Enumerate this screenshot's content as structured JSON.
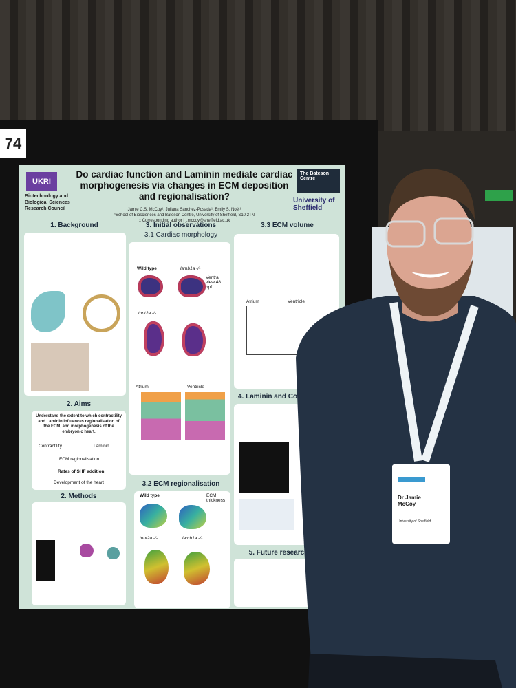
{
  "sign": "74",
  "poster": {
    "title": "Do cardiac function and Laminin mediate cardiac morphogenesis via changes in ECM deposition and regionalisation?",
    "authors": "Jamie C.S. McCoy¹, Juliana Sánchez-Posada¹, Emily S. Noël¹",
    "affiliation": "¹School of Biosciences and Bateson Centre, University of Sheffield, S10 2TN",
    "contact": "‡ Corresponding author | j.mccoy@sheffield.ac.uk",
    "funder_logo": "UKRI",
    "funder": "Biotechnology and Biological Sciences Research Council",
    "centre": "The Bateson Centre",
    "university": "University of Sheffield",
    "sections": {
      "background": "1. Background",
      "aims": "2. Aims",
      "methods": "2. Methods",
      "initial": "3. Initial observations",
      "morphology": "3.1 Cardiac morphology",
      "regionalisation": "3.2 ECM regionalisation",
      "volume": "3.3 ECM volume",
      "laminin": "4. Laminin and Con",
      "future": "5. Future research"
    },
    "aims_text": "Understand the extent to which contractility and Laminin influences regionalisation of the ECM, and morphogenesis of the embryonic heart.",
    "diagram": {
      "contractility": "Contractility",
      "laminin": "Laminin",
      "ecm": "ECM regionalisation",
      "shf": "Rates of SHF addition",
      "development": "Development of the heart"
    },
    "panel_labels": {
      "wild_type": "Wild type",
      "lamb1a": "lamb1a -/-",
      "tnnt2a": "tnnt2a -/-",
      "view": "Ventral view 48 hpf",
      "atrium": "Atrium",
      "ventricle": "Ventricle",
      "thickness": "ECM thickness"
    }
  },
  "badge": {
    "name": "Dr Jamie McCoy",
    "affiliation": "University of Sheffield"
  }
}
